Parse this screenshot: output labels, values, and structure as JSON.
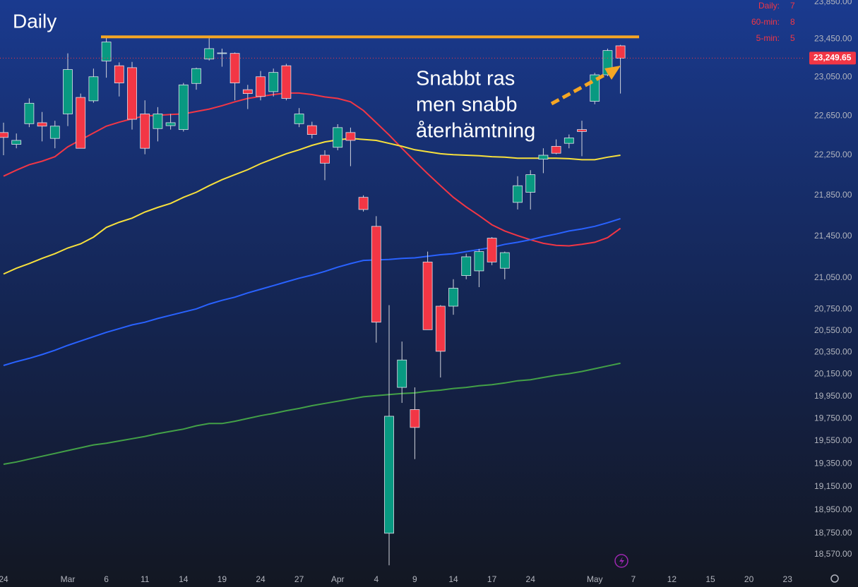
{
  "chart_data": {
    "type": "candlestick",
    "title": "Daily",
    "annotation": [
      "Snabbt ras",
      "men snabb",
      "återhämtning"
    ],
    "intervals": [
      {
        "label": "Daily:",
        "value": 7
      },
      {
        "label": "60-min:",
        "value": 8
      },
      {
        "label": "5-min:",
        "value": 5
      }
    ],
    "categories": [
      "24",
      null,
      null,
      null,
      null,
      "Mar",
      null,
      null,
      "6",
      null,
      null,
      "11",
      null,
      null,
      "14",
      null,
      null,
      "19",
      null,
      null,
      "24",
      null,
      null,
      "27",
      null,
      null,
      "Apr",
      null,
      null,
      "4",
      null,
      null,
      "9",
      null,
      null,
      "14",
      null,
      null,
      "17",
      null,
      null,
      "24",
      null,
      null,
      null,
      null,
      "May",
      null,
      null,
      "7",
      null,
      null,
      "12",
      null,
      null,
      "15",
      null,
      null,
      "20",
      null,
      null,
      "23",
      null
    ],
    "open": [
      22480,
      22360,
      22570,
      22580,
      22420,
      22670,
      22840,
      22805,
      23220,
      23170,
      23150,
      22670,
      22520,
      22550,
      22510,
      22985,
      23240,
      23300,
      23300,
      22920,
      23055,
      22900,
      23170,
      22570,
      22550,
      22250,
      22330,
      22480,
      21830,
      21545,
      18750,
      20030,
      19830,
      21200,
      20780,
      20780,
      21070,
      21115,
      21430,
      21140,
      21780,
      21880,
      22210,
      22340,
      22370,
      22510,
      22800,
      23075,
      23380,
      null,
      null,
      null,
      null,
      null,
      null,
      null,
      null,
      null,
      null,
      null,
      null,
      null,
      null
    ],
    "high": [
      22580,
      22470,
      22830,
      22690,
      22600,
      23300,
      22880,
      23140,
      23480,
      23205,
      23210,
      22810,
      22740,
      22670,
      22990,
      23150,
      23460,
      23350,
      23310,
      22970,
      23115,
      23140,
      23190,
      22730,
      22590,
      22300,
      22565,
      22530,
      21850,
      21645,
      20790,
      20450,
      20030,
      21300,
      20790,
      21035,
      21280,
      21325,
      21440,
      21300,
      22040,
      22100,
      22320,
      22410,
      22460,
      22600,
      23095,
      23350,
      23390,
      null,
      null,
      null,
      null,
      null,
      null,
      null,
      null,
      null,
      null,
      null,
      null,
      null,
      null
    ],
    "low": [
      22250,
      22320,
      22535,
      22390,
      22320,
      22545,
      22320,
      22785,
      23045,
      22850,
      22510,
      22260,
      22390,
      22510,
      22490,
      22920,
      23225,
      23160,
      22810,
      22720,
      22810,
      22850,
      22810,
      22535,
      22420,
      22000,
      22300,
      22140,
      21690,
      20440,
      18480,
      19890,
      19390,
      20560,
      20120,
      20700,
      21035,
      20960,
      21170,
      21035,
      21710,
      21710,
      22070,
      22260,
      22320,
      22240,
      22770,
      23060,
      22880,
      null,
      null,
      null,
      null,
      null,
      null,
      null,
      null,
      null,
      null,
      null,
      null,
      null,
      null
    ],
    "close": [
      22430,
      22400,
      22780,
      22545,
      22545,
      23130,
      22320,
      23055,
      23420,
      22990,
      22615,
      22320,
      22670,
      22580,
      22970,
      23140,
      23350,
      23305,
      22990,
      22880,
      22850,
      23100,
      22830,
      22670,
      22460,
      22170,
      22530,
      22400,
      21710,
      20630,
      19770,
      20280,
      19670,
      20560,
      20360,
      20950,
      21250,
      21300,
      21200,
      21290,
      21945,
      22055,
      22250,
      22270,
      22425,
      22490,
      23075,
      23330,
      23249.65,
      null,
      null,
      null,
      null,
      null,
      null,
      null,
      null,
      null,
      null,
      null,
      null,
      null,
      null
    ],
    "up_color": "#089981",
    "down_color": "#f23645",
    "series": [
      {
        "color": "#f23645",
        "values": [
          22040,
          22100,
          22155,
          22190,
          22235,
          22335,
          22405,
          22475,
          22545,
          22585,
          22620,
          22650,
          22655,
          22665,
          22670,
          22695,
          22720,
          22755,
          22795,
          22830,
          22850,
          22870,
          22885,
          22885,
          22870,
          22845,
          22830,
          22795,
          22705,
          22580,
          22455,
          22320,
          22190,
          22065,
          21945,
          21830,
          21735,
          21650,
          21560,
          21500,
          21455,
          21415,
          21380,
          21360,
          21355,
          21370,
          21390,
          21435,
          21525,
          null,
          null,
          null,
          null,
          null,
          null,
          null,
          null,
          null,
          null,
          null,
          null,
          null,
          null
        ]
      },
      {
        "color": "#f7e03c",
        "values": [
          21085,
          21140,
          21185,
          21235,
          21280,
          21335,
          21375,
          21440,
          21535,
          21585,
          21625,
          21685,
          21730,
          21770,
          21830,
          21880,
          21945,
          22005,
          22055,
          22105,
          22165,
          22215,
          22265,
          22305,
          22350,
          22385,
          22405,
          22420,
          22410,
          22400,
          22370,
          22340,
          22305,
          22285,
          22265,
          22255,
          22250,
          22245,
          22235,
          22230,
          22220,
          22220,
          22220,
          22220,
          22215,
          22205,
          22205,
          22230,
          22250,
          null,
          null,
          null,
          null,
          null,
          null,
          null,
          null,
          null,
          null,
          null,
          null,
          null,
          null
        ]
      },
      {
        "color": "#2962ff",
        "values": [
          20230,
          20265,
          20295,
          20330,
          20370,
          20415,
          20455,
          20495,
          20535,
          20570,
          20605,
          20630,
          20665,
          20695,
          20725,
          20755,
          20800,
          20835,
          20865,
          20905,
          20940,
          20975,
          21010,
          21045,
          21075,
          21110,
          21150,
          21185,
          21215,
          21220,
          21225,
          21235,
          21240,
          21255,
          21270,
          21280,
          21300,
          21320,
          21340,
          21370,
          21390,
          21415,
          21445,
          21470,
          21500,
          21520,
          21545,
          21580,
          21620,
          null,
          null,
          null,
          null,
          null,
          null,
          null,
          null,
          null,
          null,
          null,
          null,
          null,
          null
        ]
      },
      {
        "color": "#43a047",
        "values": [
          19345,
          19365,
          19390,
          19415,
          19440,
          19465,
          19490,
          19515,
          19530,
          19550,
          19570,
          19590,
          19615,
          19635,
          19655,
          19685,
          19705,
          19705,
          19725,
          19750,
          19775,
          19795,
          19820,
          19840,
          19865,
          19885,
          19905,
          19925,
          19945,
          19955,
          19965,
          19975,
          19980,
          19995,
          20005,
          20020,
          20030,
          20045,
          20055,
          20070,
          20090,
          20100,
          20120,
          20140,
          20155,
          20175,
          20200,
          20225,
          20250,
          null,
          null,
          null,
          null,
          null,
          null,
          null,
          null,
          null,
          null,
          null,
          null,
          null,
          null
        ]
      }
    ],
    "resistance": {
      "value": 23475,
      "color": "#f5a623"
    },
    "last_price": {
      "value": 23249.65,
      "label": "23,249.65"
    },
    "log_scale": true,
    "grid": false,
    "ylim": [
      18440,
      23870
    ],
    "yticks": [
      {
        "value": 23850,
        "label": "23,850.00"
      },
      {
        "value": 23450,
        "label": "23,450.00"
      },
      {
        "value": 23050,
        "label": "23,050.00"
      },
      {
        "value": 22650,
        "label": "22,650.00"
      },
      {
        "value": 22250,
        "label": "22,250.00"
      },
      {
        "value": 21850,
        "label": "21,850.00"
      },
      {
        "value": 21450,
        "label": "21,450.00"
      },
      {
        "value": 21050,
        "label": "21,050.00"
      },
      {
        "value": 20750,
        "label": "20,750.00"
      },
      {
        "value": 20550,
        "label": "20,550.00"
      },
      {
        "value": 20350,
        "label": "20,350.00"
      },
      {
        "value": 20150,
        "label": "20,150.00"
      },
      {
        "value": 19950,
        "label": "19,950.00"
      },
      {
        "value": 19750,
        "label": "19,750.00"
      },
      {
        "value": 19550,
        "label": "19,550.00"
      },
      {
        "value": 19350,
        "label": "19,350.00"
      },
      {
        "value": 19150,
        "label": "19,150.00"
      },
      {
        "value": 18950,
        "label": "18,950.00"
      },
      {
        "value": 18750,
        "label": "18,750.00"
      },
      {
        "value": 18570,
        "label": "18,570.00"
      }
    ]
  }
}
